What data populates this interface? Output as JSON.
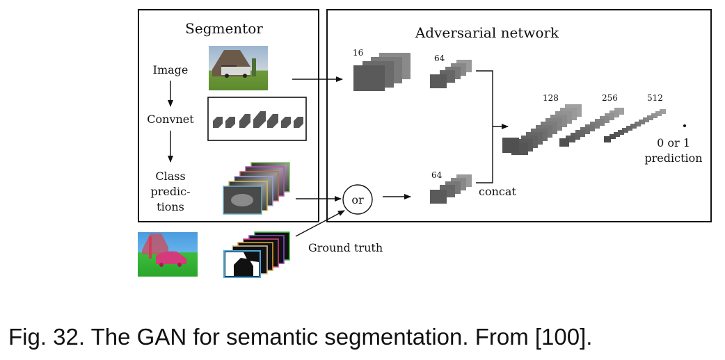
{
  "segmentor": {
    "title": "Segmentor",
    "steps": [
      "Image",
      "Convnet",
      "Class",
      "predic-",
      "tions"
    ]
  },
  "adversarial": {
    "title": "Adversarial network",
    "sizes": [
      "16",
      "64",
      "64",
      "128",
      "256",
      "512"
    ],
    "concat_label": "concat",
    "output_lines": [
      "0 or 1",
      "prediction"
    ]
  },
  "or_label": "or",
  "ground_truth_label": "Ground truth",
  "caption": "Fig. 32. The GAN for semantic segmentation. From [100]."
}
